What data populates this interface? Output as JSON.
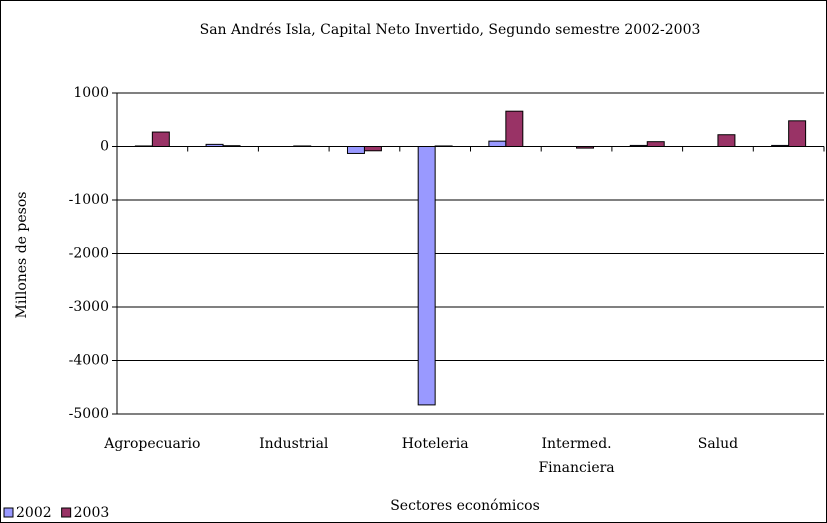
{
  "chart_data": {
    "type": "bar",
    "title": "San Andrés Isla, Capital Neto Invertido, Segundo semestre 2002-2003",
    "x_label": "Sectores económicos",
    "y_label": "Millones de pesos",
    "categories": [
      "Agropecuario",
      null,
      "Industrial",
      null,
      "Hoteleria",
      null,
      "Intermed. Financiera",
      null,
      "Salud",
      null
    ],
    "series": [
      {
        "name": "2002",
        "color": "#9999ff",
        "values": [
          10,
          40,
          0,
          -130,
          -4830,
          100,
          0,
          20,
          0,
          20
        ]
      },
      {
        "name": "2003",
        "color": "#993366",
        "values": [
          270,
          15,
          10,
          -80,
          10,
          660,
          -30,
          90,
          220,
          480
        ]
      }
    ],
    "ylim": [
      -5000,
      1000
    ],
    "yticks": [
      -5000,
      -4000,
      -3000,
      -2000,
      -1000,
      0,
      1000
    ],
    "grid": true,
    "legend": "bottom-left"
  }
}
